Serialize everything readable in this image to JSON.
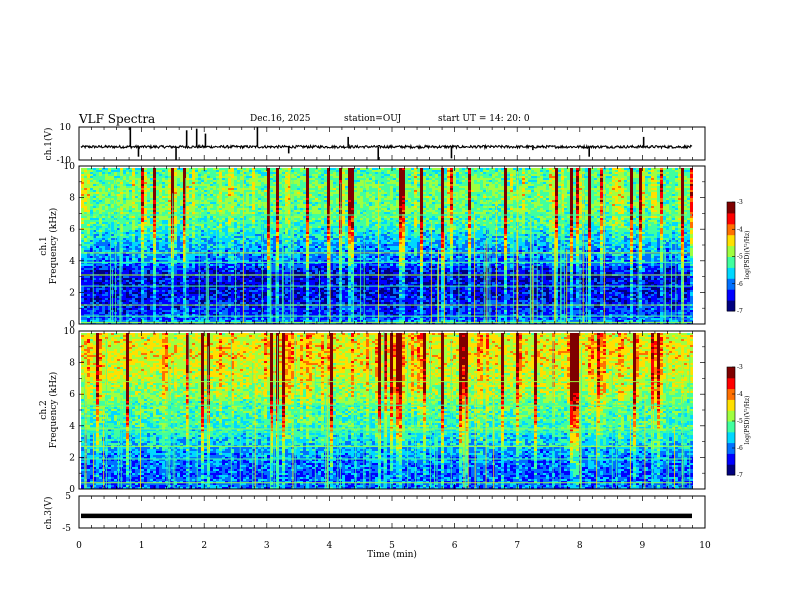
{
  "header": {
    "title": "VLF Spectra",
    "date": "Dec.16, 2025",
    "station": "station=OUJ",
    "start": "start  UT =   14: 20: 0"
  },
  "colormap": [
    "#00007f",
    "#0000ff",
    "#0070ff",
    "#00d8ff",
    "#40ff9f",
    "#9fff40",
    "#ffe000",
    "#ff7000",
    "#ff0000",
    "#7f0000"
  ],
  "chart_data": [
    {
      "type": "line",
      "name": "ch1-waveform",
      "ylabel": "ch.1(V)",
      "ylim": [
        -10,
        10
      ],
      "yticks": [
        "10",
        "-10"
      ],
      "xlim": [
        0,
        10
      ],
      "baseline": -2,
      "spikes": [
        {
          "t": 0.82,
          "v": 10
        },
        {
          "t": 0.95,
          "v": -8
        },
        {
          "t": 1.55,
          "v": -10
        },
        {
          "t": 1.72,
          "v": 8
        },
        {
          "t": 1.88,
          "v": 9
        },
        {
          "t": 2.02,
          "v": 6
        },
        {
          "t": 2.85,
          "v": 10
        },
        {
          "t": 3.35,
          "v": -6
        },
        {
          "t": 4.3,
          "v": 4
        },
        {
          "t": 4.78,
          "v": -10
        },
        {
          "t": 5.95,
          "v": -9
        },
        {
          "t": 7.25,
          "v": -4
        },
        {
          "t": 8.15,
          "v": -8
        },
        {
          "t": 9.02,
          "v": 4
        },
        {
          "t": 9.48,
          "v": -3
        }
      ]
    },
    {
      "type": "heatmap",
      "name": "ch1-spectrogram",
      "ylabel": "ch.1",
      "ylabel2": "Frequency (kHz)",
      "ylim": [
        0,
        10
      ],
      "yticks": [
        "0",
        "2",
        "4",
        "6",
        "8",
        "10"
      ],
      "xlim": [
        0,
        10
      ],
      "profile": [
        {
          "f": 0.0,
          "level": 0.3
        },
        {
          "f": 0.6,
          "level": 0.2
        },
        {
          "f": 1.5,
          "level": 0.15
        },
        {
          "f": 2.5,
          "level": 0.12
        },
        {
          "f": 3.2,
          "level": 0.1
        },
        {
          "f": 4.0,
          "level": 0.25
        },
        {
          "f": 5.0,
          "level": 0.3
        },
        {
          "f": 6.0,
          "level": 0.4
        },
        {
          "f": 7.0,
          "level": 0.48
        },
        {
          "f": 8.5,
          "level": 0.5
        },
        {
          "f": 10.0,
          "level": 0.45
        }
      ],
      "lines_khz": [
        0.1,
        0.5,
        1.2,
        2.4,
        3.1,
        3.9,
        4.5,
        6.9
      ],
      "colorbar": {
        "label": "log(PSD)(V²/Hz)",
        "range": [
          -7,
          -3
        ],
        "ticks": [
          "-3",
          "-4",
          "-5",
          "-6",
          "-7"
        ]
      }
    },
    {
      "type": "heatmap",
      "name": "ch2-spectrogram",
      "ylabel": "ch.2",
      "ylabel2": "Frequency (kHz)",
      "ylim": [
        0,
        10
      ],
      "yticks": [
        "0",
        "2",
        "4",
        "6",
        "8",
        "10"
      ],
      "xlim": [
        0,
        10
      ],
      "profile": [
        {
          "f": 0.0,
          "level": 0.25
        },
        {
          "f": 1.0,
          "level": 0.22
        },
        {
          "f": 2.0,
          "level": 0.25
        },
        {
          "f": 3.0,
          "level": 0.35
        },
        {
          "f": 4.0,
          "level": 0.42
        },
        {
          "f": 5.0,
          "level": 0.45
        },
        {
          "f": 6.0,
          "level": 0.52
        },
        {
          "f": 7.0,
          "level": 0.58
        },
        {
          "f": 8.5,
          "level": 0.62
        },
        {
          "f": 10.0,
          "level": 0.6
        }
      ],
      "lines_khz": [
        0.4,
        1.9,
        2.7,
        3.6,
        3.8,
        5.3,
        6.8
      ],
      "colorbar": {
        "label": "log(PSD)(V²/Hz)",
        "range": [
          -7,
          -3
        ],
        "ticks": [
          "-3",
          "-4",
          "-5",
          "-6",
          "-7"
        ]
      }
    },
    {
      "type": "line",
      "name": "ch3-waveform",
      "ylabel": "ch.3(V)",
      "ylim": [
        -5,
        5
      ],
      "yticks": [
        "5",
        "-5"
      ],
      "xlim": [
        0,
        10
      ],
      "baseline": -1.2,
      "xlabel": "Time (min)",
      "xticks": [
        "0",
        "1",
        "2",
        "3",
        "4",
        "5",
        "6",
        "7",
        "8",
        "9",
        "10"
      ]
    }
  ]
}
